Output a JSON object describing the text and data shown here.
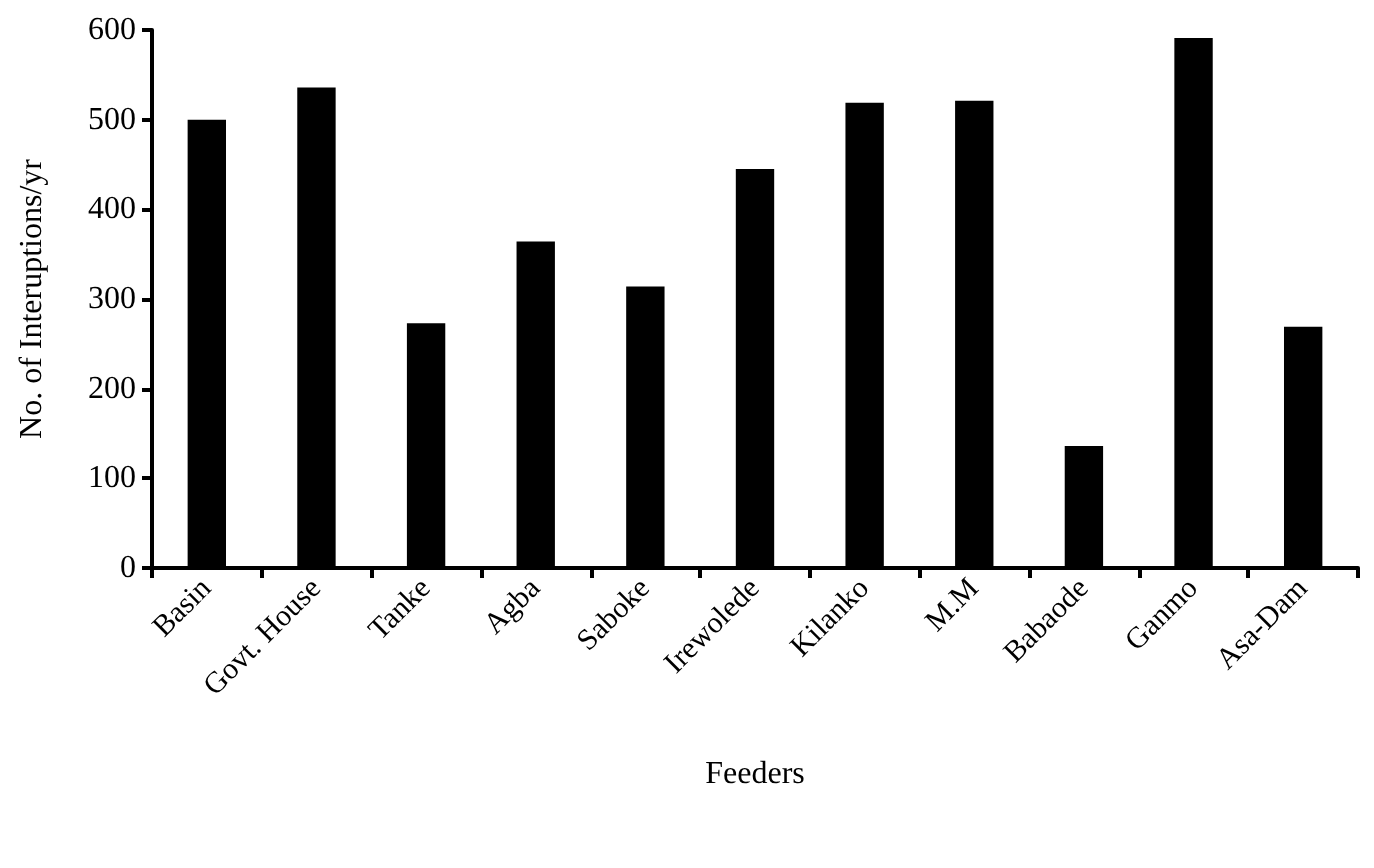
{
  "chart_data": {
    "type": "bar",
    "xlabel": "Feeders",
    "ylabel": "No. of Interuptions/yr",
    "categories": [
      "Basin",
      "Govt. House",
      "Tanke",
      "Agba",
      "Saboke",
      "Irewolede",
      "Kilanko",
      "M.M",
      "Babaode",
      "Ganmo",
      "Asa-Dam"
    ],
    "values": [
      500,
      536,
      273,
      364,
      314,
      445,
      519,
      521,
      136,
      591,
      269
    ],
    "color": "#000000",
    "ylim": [
      0,
      600
    ],
    "yticks": [
      0,
      100,
      200,
      300,
      400,
      500,
      600
    ],
    "grid": false
  }
}
